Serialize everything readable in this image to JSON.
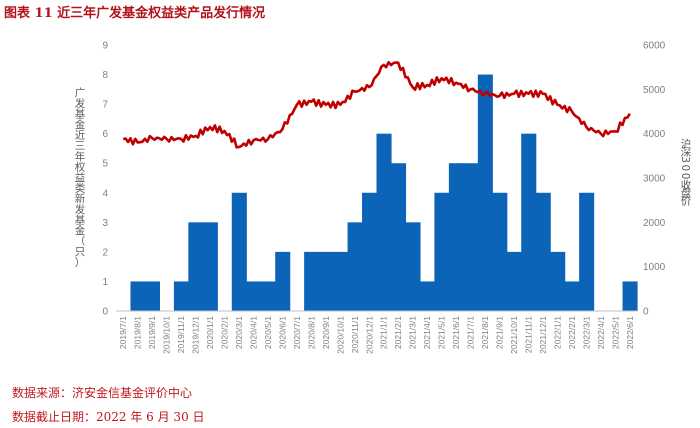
{
  "figure": {
    "title": "图表 11 近三年广发基金权益类产品发行情况",
    "source": "数据来源：济安金信基金评价中心",
    "cutoff": "数据截止日期：2022 年 6 月 30 日"
  },
  "chart_data": {
    "type": "bar",
    "title": "",
    "ylabel": "广发基金近三年权益类新发基金（只）",
    "y2label": "沪深300收盘价",
    "ylim": [
      0,
      9
    ],
    "y2lim": [
      0,
      6000
    ],
    "grid": false,
    "legend": "none",
    "colors": {
      "bars": "#0b64b7",
      "line": "#c00000"
    },
    "categories": [
      "2019/7/1",
      "2019/8/1",
      "2019/9/1",
      "2019/10/1",
      "2019/11/1",
      "2019/12/1",
      "2020/1/1",
      "2020/2/1",
      "2020/3/1",
      "2020/4/1",
      "2020/5/1",
      "2020/6/1",
      "2020/7/1",
      "2020/8/1",
      "2020/9/1",
      "2020/10/1",
      "2020/11/1",
      "2020/12/1",
      "2021/1/1",
      "2021/2/1",
      "2021/3/1",
      "2021/4/1",
      "2021/5/1",
      "2021/6/1",
      "2021/7/1",
      "2021/8/1",
      "2021/9/1",
      "2021/10/1",
      "2021/11/1",
      "2021/12/1",
      "2022/1/1",
      "2022/2/1",
      "2022/3/1",
      "2022/4/1",
      "2022/5/1",
      "2022/6/1"
    ],
    "series": [
      {
        "type": "bar",
        "axis": "left",
        "values": [
          0,
          1,
          1,
          0,
          1,
          3,
          3,
          0,
          4,
          1,
          1,
          2,
          0,
          2,
          2,
          2,
          3,
          4,
          6,
          5,
          3,
          1,
          4,
          5,
          5,
          8,
          4,
          2,
          6,
          4,
          2,
          1,
          4,
          0,
          0,
          1
        ]
      },
      {
        "type": "line",
        "axis": "right",
        "values": [
          3880,
          3800,
          3900,
          3880,
          3880,
          3950,
          4150,
          4060,
          3700,
          3850,
          3880,
          4100,
          4650,
          4720,
          4650,
          4650,
          4950,
          5050,
          5550,
          5600,
          5050,
          5100,
          5250,
          5150,
          5000,
          4900,
          4850,
          4900,
          4900,
          4900,
          4650,
          4500,
          4150,
          4000,
          4050,
          4450
        ]
      }
    ]
  }
}
